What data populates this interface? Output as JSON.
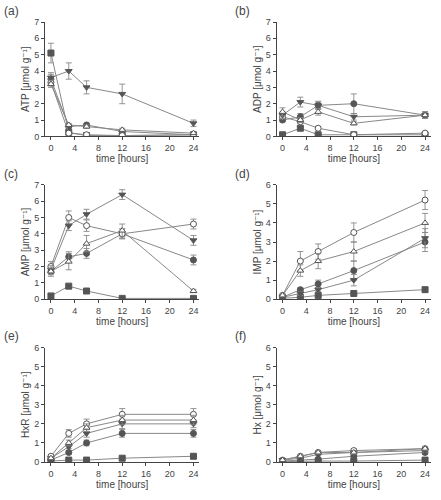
{
  "chart_data": [
    {
      "type": "line",
      "title": "(a)",
      "x": [
        0,
        3,
        6,
        12,
        24
      ],
      "xlim": [
        -1,
        25
      ],
      "xticks": [
        0,
        4,
        8,
        12,
        16,
        20,
        24
      ],
      "xlabel": "time [hours]",
      "ylabel": "ATP [μmol g⁻¹]",
      "ylim": [
        0,
        7
      ],
      "yticks": [
        0,
        1,
        2,
        3,
        4,
        5,
        6,
        7
      ],
      "grid": false,
      "color": "#888888",
      "series": [
        {
          "marker": "square",
          "color": "#555555",
          "values": [
            5.1,
            0.25,
            0.05,
            0.05,
            0.1
          ],
          "yerr": [
            0.6,
            0.1,
            0.02,
            0.02,
            0.05
          ]
        },
        {
          "marker": "circle",
          "color": "#555555",
          "values": [
            3.5,
            0.6,
            0.7,
            0.3,
            0.1
          ],
          "yerr": [
            0.3,
            0.1,
            0.1,
            0.05,
            0.05
          ]
        },
        {
          "marker": "circle-open",
          "color": "#555555",
          "values": [
            3.3,
            0.2,
            0.1,
            0.05,
            0.1
          ],
          "yerr": [
            0.2,
            0.05,
            0.05,
            0.02,
            0.05
          ]
        },
        {
          "marker": "triangle-down",
          "color": "#555555",
          "values": [
            3.6,
            4.0,
            3.0,
            2.6,
            0.8
          ],
          "yerr": [
            0.3,
            0.5,
            0.4,
            0.6,
            0.2
          ]
        },
        {
          "marker": "triangle-up-open",
          "color": "#555555",
          "values": [
            3.2,
            0.7,
            0.6,
            0.4,
            0.2
          ],
          "yerr": [
            0.2,
            0.1,
            0.1,
            0.1,
            0.05
          ]
        }
      ]
    },
    {
      "type": "line",
      "title": "(b)",
      "x": [
        0,
        3,
        6,
        12,
        24
      ],
      "xlim": [
        -1,
        25
      ],
      "xticks": [
        0,
        4,
        8,
        12,
        16,
        20,
        24
      ],
      "xlabel": "time [hours]",
      "ylabel": "ADP [μmol g⁻¹]",
      "ylim": [
        0,
        7
      ],
      "yticks": [
        0,
        1,
        2,
        3,
        4,
        5,
        6,
        7
      ],
      "grid": false,
      "color": "#888888",
      "series": [
        {
          "marker": "square",
          "color": "#555555",
          "values": [
            0.1,
            0.5,
            0.1,
            0.1,
            0.1
          ],
          "yerr": [
            0.05,
            0.1,
            0.05,
            0.05,
            0.05
          ]
        },
        {
          "marker": "circle",
          "color": "#555555",
          "values": [
            1.0,
            1.2,
            1.9,
            2.0,
            1.3
          ],
          "yerr": [
            0.1,
            0.2,
            0.2,
            0.6,
            0.2
          ]
        },
        {
          "marker": "circle-open",
          "color": "#555555",
          "values": [
            1.2,
            0.9,
            0.5,
            0.1,
            0.2
          ],
          "yerr": [
            0.15,
            0.1,
            0.1,
            0.05,
            0.05
          ]
        },
        {
          "marker": "triangle-down",
          "color": "#555555",
          "values": [
            1.3,
            2.1,
            1.9,
            1.2,
            1.3
          ],
          "yerr": [
            0.2,
            0.3,
            0.25,
            0.2,
            0.2
          ]
        },
        {
          "marker": "triangle-up-open",
          "color": "#555555",
          "values": [
            1.5,
            1.0,
            1.5,
            0.8,
            1.3
          ],
          "yerr": [
            0.25,
            0.15,
            0.2,
            0.1,
            0.2
          ]
        }
      ]
    },
    {
      "type": "line",
      "title": "(c)",
      "x": [
        0,
        3,
        6,
        12,
        24
      ],
      "xlim": [
        -1,
        25
      ],
      "xticks": [
        0,
        4,
        8,
        12,
        16,
        20,
        24
      ],
      "xlabel": "time [hours]",
      "ylabel": "AMP [μmol g⁻¹]",
      "ylim": [
        0,
        7
      ],
      "yticks": [
        0,
        1,
        2,
        3,
        4,
        5,
        6,
        7
      ],
      "grid": false,
      "color": "#888888",
      "series": [
        {
          "marker": "square",
          "color": "#555555",
          "values": [
            0.2,
            0.8,
            0.5,
            0.05,
            0.05
          ],
          "yerr": [
            0.05,
            0.1,
            0.1,
            0.02,
            0.02
          ]
        },
        {
          "marker": "circle",
          "color": "#555555",
          "values": [
            1.7,
            2.6,
            2.8,
            4.0,
            2.4
          ],
          "yerr": [
            0.3,
            0.3,
            0.3,
            0.3,
            0.3
          ]
        },
        {
          "marker": "circle-open",
          "color": "#555555",
          "values": [
            2.0,
            5.0,
            4.5,
            4.0,
            4.6
          ],
          "yerr": [
            0.3,
            0.4,
            0.35,
            0.3,
            0.3
          ]
        },
        {
          "marker": "triangle-down",
          "color": "#555555",
          "values": [
            1.8,
            4.5,
            5.2,
            6.4,
            3.6
          ],
          "yerr": [
            0.25,
            0.3,
            0.3,
            0.3,
            0.3
          ]
        },
        {
          "marker": "triangle-up-open",
          "color": "#555555",
          "values": [
            1.7,
            2.3,
            3.4,
            4.2,
            0.5
          ],
          "yerr": [
            0.2,
            0.5,
            0.5,
            0.4,
            0.1
          ]
        }
      ]
    },
    {
      "type": "line",
      "title": "(d)",
      "x": [
        0,
        3,
        6,
        12,
        24
      ],
      "xlim": [
        -1,
        25
      ],
      "xticks": [
        0,
        4,
        8,
        12,
        16,
        20,
        24
      ],
      "xlabel": "time [hours]",
      "ylabel": "IMP [μmol g⁻¹]",
      "ylim": [
        0,
        6
      ],
      "yticks": [
        0,
        1,
        2,
        3,
        4,
        5,
        6
      ],
      "grid": false,
      "color": "#888888",
      "series": [
        {
          "marker": "square",
          "color": "#555555",
          "values": [
            0.05,
            0.1,
            0.2,
            0.3,
            0.5
          ],
          "yerr": [
            0.02,
            0.05,
            0.05,
            0.05,
            0.1
          ]
        },
        {
          "marker": "circle",
          "color": "#555555",
          "values": [
            0.1,
            0.5,
            0.8,
            1.5,
            3.0
          ],
          "yerr": [
            0.05,
            0.1,
            0.2,
            0.5,
            0.5
          ]
        },
        {
          "marker": "circle-open",
          "color": "#555555",
          "values": [
            0.2,
            2.0,
            2.5,
            3.5,
            5.2
          ],
          "yerr": [
            0.05,
            0.5,
            0.4,
            0.5,
            0.5
          ]
        },
        {
          "marker": "triangle-down",
          "color": "#555555",
          "values": [
            0.1,
            0.3,
            0.5,
            1.0,
            3.2
          ],
          "yerr": [
            0.02,
            0.1,
            0.1,
            0.3,
            0.5
          ]
        },
        {
          "marker": "triangle-up-open",
          "color": "#555555",
          "values": [
            0.2,
            1.5,
            2.0,
            2.5,
            4.0
          ],
          "yerr": [
            0.05,
            0.3,
            0.4,
            0.5,
            0.5
          ]
        }
      ]
    },
    {
      "type": "line",
      "title": "(e)",
      "x": [
        0,
        3,
        6,
        12,
        24
      ],
      "xlim": [
        -1,
        25
      ],
      "xticks": [
        0,
        4,
        8,
        12,
        16,
        20,
        24
      ],
      "xlabel": "time [hours]",
      "ylabel": "HxR [μmol g⁻¹]",
      "ylim": [
        0,
        6
      ],
      "yticks": [
        0,
        1,
        2,
        3,
        4,
        5,
        6
      ],
      "grid": false,
      "color": "#888888",
      "series": [
        {
          "marker": "square",
          "color": "#555555",
          "values": [
            0.05,
            0.1,
            0.1,
            0.2,
            0.3
          ],
          "yerr": [
            0.02,
            0.03,
            0.03,
            0.05,
            0.05
          ]
        },
        {
          "marker": "circle",
          "color": "#555555",
          "values": [
            0.1,
            0.5,
            1.0,
            1.5,
            1.5
          ],
          "yerr": [
            0.05,
            0.1,
            0.15,
            0.2,
            0.2
          ]
        },
        {
          "marker": "circle-open",
          "color": "#555555",
          "values": [
            0.3,
            1.5,
            2.0,
            2.5,
            2.5
          ],
          "yerr": [
            0.05,
            0.2,
            0.25,
            0.3,
            0.3
          ]
        },
        {
          "marker": "triangle-down",
          "color": "#555555",
          "values": [
            0.2,
            0.8,
            1.5,
            2.0,
            2.0
          ],
          "yerr": [
            0.05,
            0.1,
            0.2,
            0.25,
            0.2
          ]
        },
        {
          "marker": "triangle-up-open",
          "color": "#555555",
          "values": [
            0.2,
            1.0,
            1.8,
            2.2,
            2.2
          ],
          "yerr": [
            0.05,
            0.15,
            0.2,
            0.25,
            0.25
          ]
        }
      ]
    },
    {
      "type": "line",
      "title": "(f)",
      "x": [
        0,
        3,
        6,
        12,
        24
      ],
      "xlim": [
        -1,
        25
      ],
      "xticks": [
        0,
        4,
        8,
        12,
        16,
        20,
        24
      ],
      "xlabel": "time [hours]",
      "ylabel": "Hx [μmol g⁻¹]",
      "ylim": [
        0,
        6
      ],
      "yticks": [
        0,
        1,
        2,
        3,
        4,
        5,
        6
      ],
      "grid": false,
      "color": "#888888",
      "series": [
        {
          "marker": "square",
          "color": "#555555",
          "values": [
            0.02,
            0.05,
            0.05,
            0.05,
            0.1
          ],
          "yerr": [
            0.01,
            0.01,
            0.01,
            0.01,
            0.02
          ]
        },
        {
          "marker": "circle",
          "color": "#555555",
          "values": [
            0.05,
            0.1,
            0.15,
            0.3,
            0.5
          ],
          "yerr": [
            0.01,
            0.02,
            0.03,
            0.05,
            0.1
          ]
        },
        {
          "marker": "circle-open",
          "color": "#555555",
          "values": [
            0.1,
            0.3,
            0.5,
            0.6,
            0.7
          ],
          "yerr": [
            0.02,
            0.05,
            0.08,
            0.1,
            0.1
          ]
        },
        {
          "marker": "triangle-down",
          "color": "#555555",
          "values": [
            0.1,
            0.2,
            0.4,
            0.5,
            0.6
          ],
          "yerr": [
            0.02,
            0.04,
            0.06,
            0.08,
            0.1
          ]
        },
        {
          "marker": "triangle-up-open",
          "color": "#555555",
          "values": [
            0.1,
            0.3,
            0.5,
            0.5,
            0.7
          ],
          "yerr": [
            0.02,
            0.05,
            0.08,
            0.08,
            0.1
          ]
        }
      ]
    }
  ]
}
